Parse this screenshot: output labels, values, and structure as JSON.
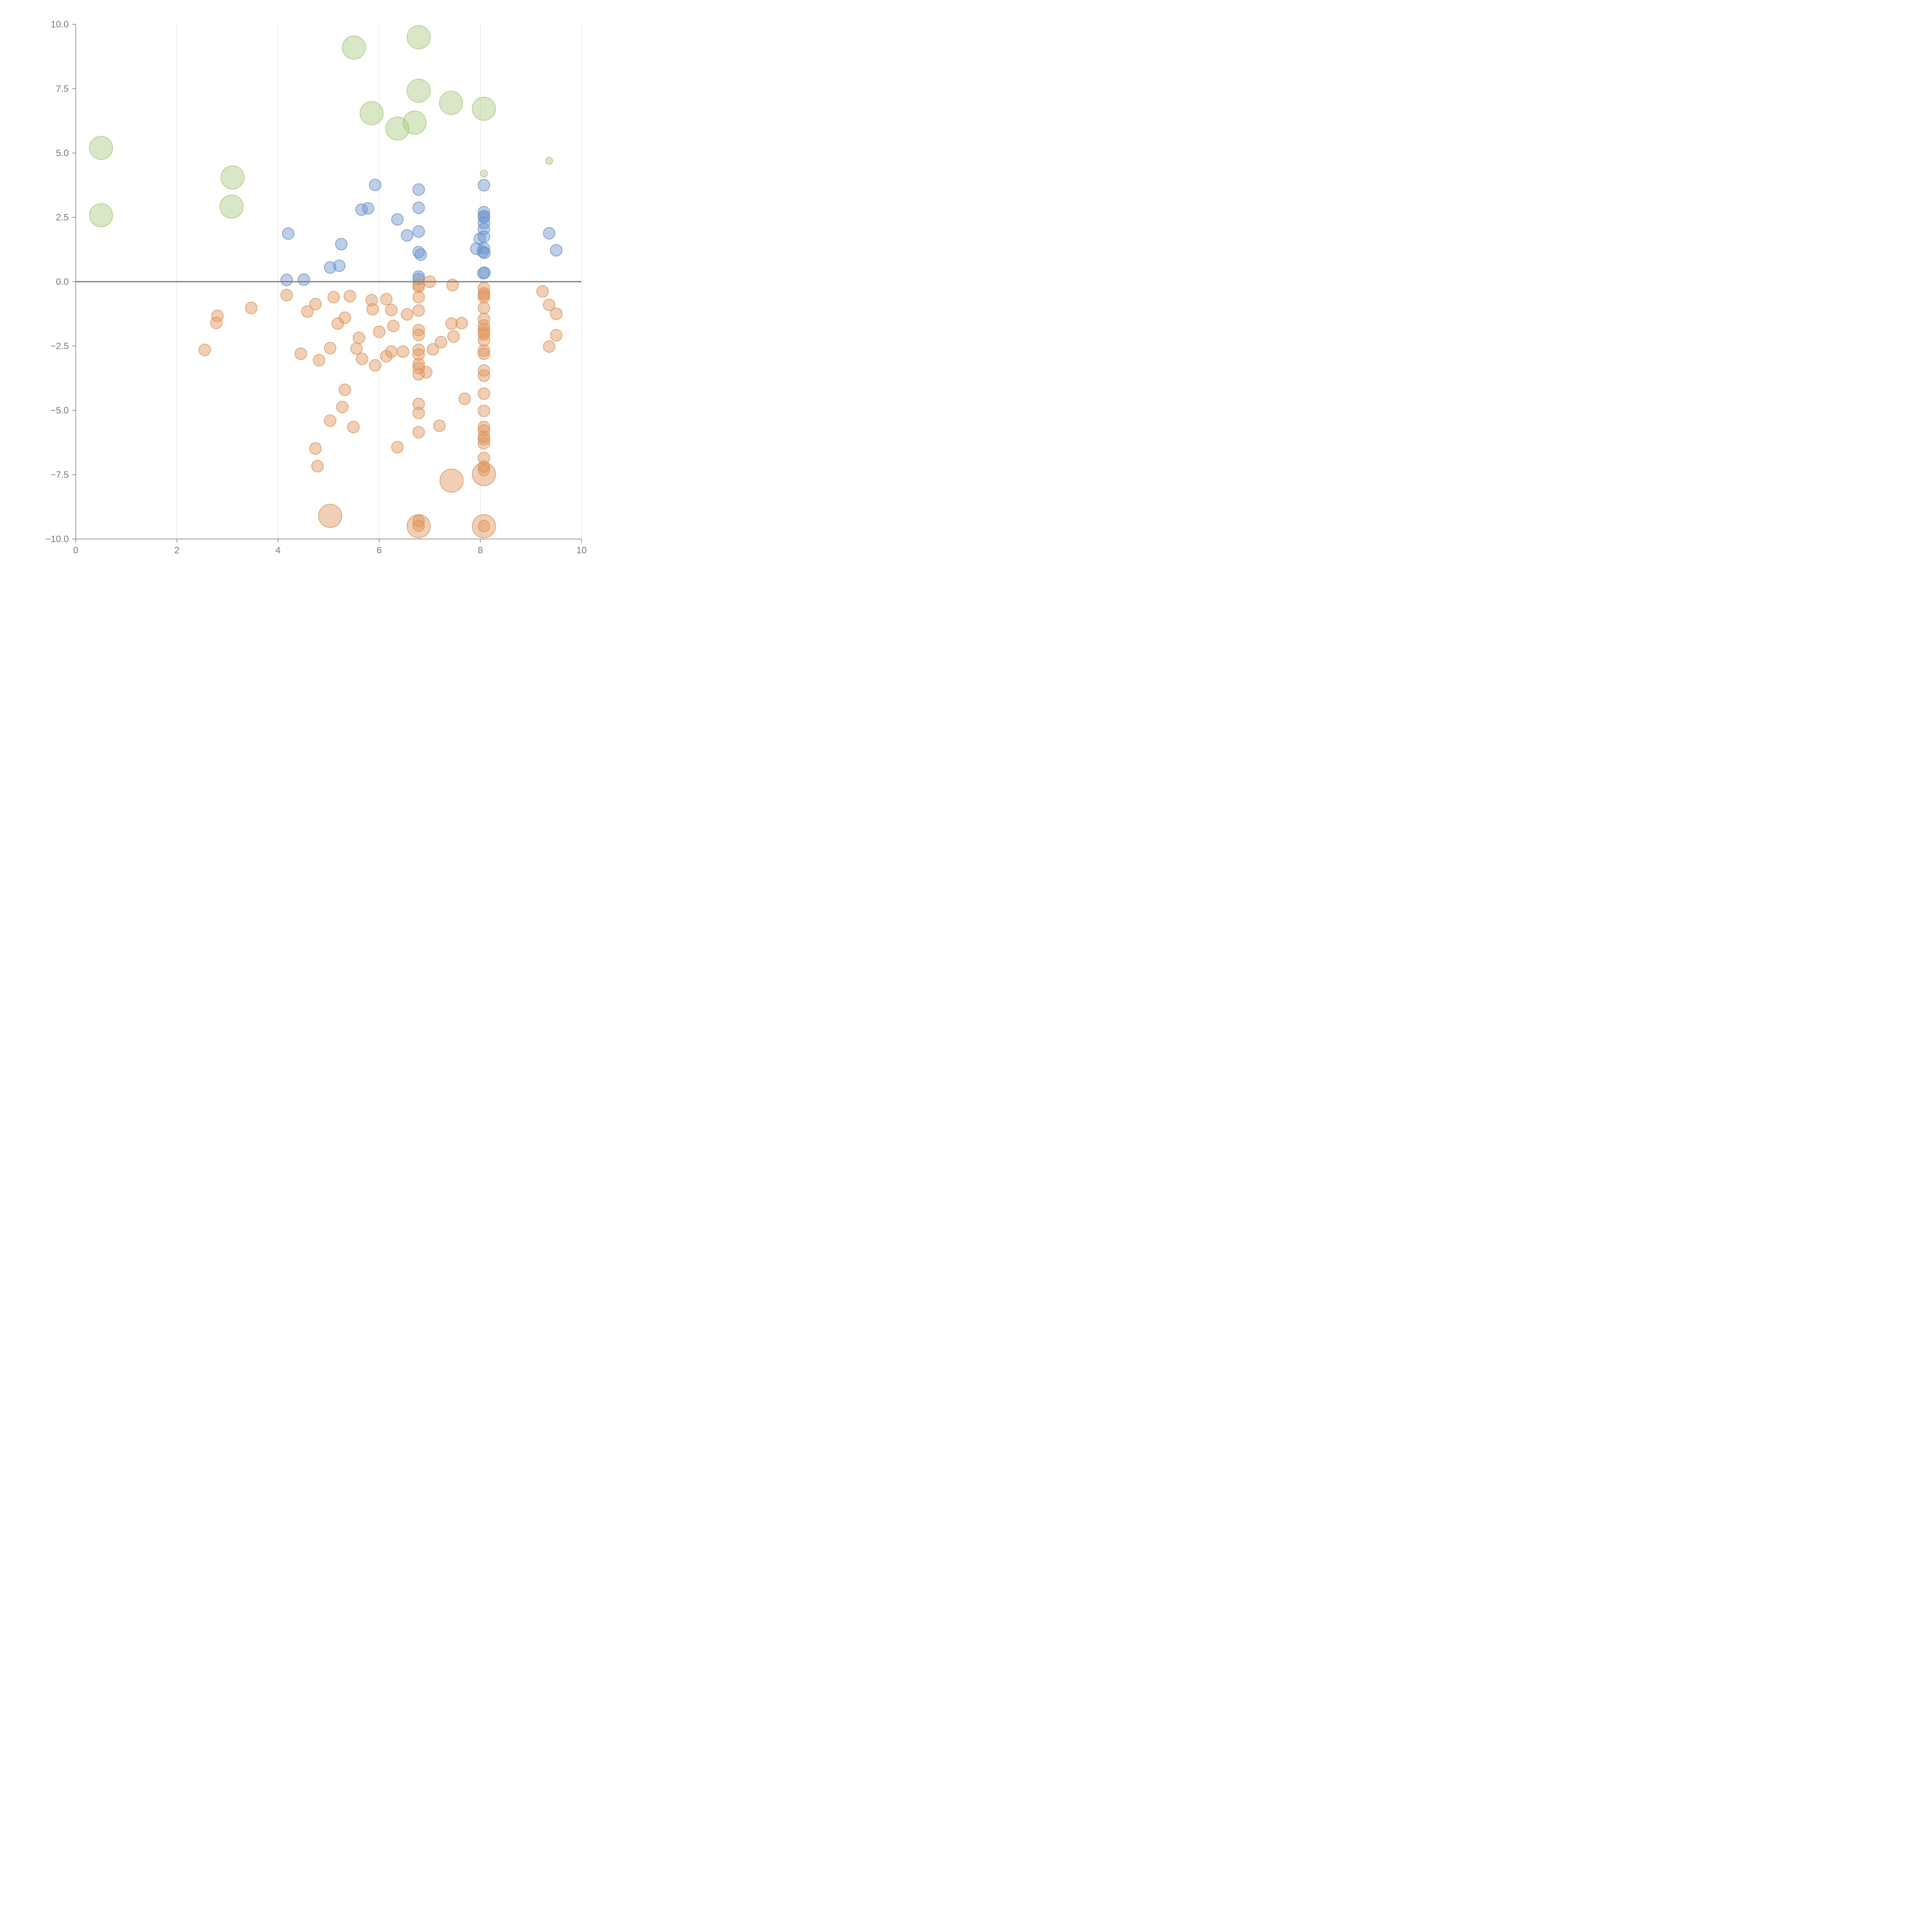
{
  "chart_data": {
    "type": "scatter",
    "title": "",
    "xlabel": "",
    "ylabel": "",
    "xlim": [
      0,
      10
    ],
    "ylim": [
      -10,
      10
    ],
    "x_ticks": [
      0,
      2,
      4,
      6,
      8,
      10
    ],
    "x_tick_labels": [
      "0",
      "2",
      "4",
      "6",
      "8",
      "10"
    ],
    "y_ticks": [
      10,
      7.5,
      5,
      2.5,
      0,
      -2.5,
      -5,
      -7.5,
      -10
    ],
    "y_tick_labels": [
      "10.0",
      "7.5",
      "5.0",
      "2.5",
      "0.0",
      "−2.5",
      "−5.0",
      "−7.5",
      "−10.0"
    ],
    "grid": "vertical",
    "reference_line_y": 0,
    "series": [
      {
        "name": "positive-large",
        "color": "#a8c97f",
        "fill_opacity": 0.45,
        "points": [
          [
            5.5,
            9.1,
            2
          ],
          [
            6.78,
            9.5,
            2
          ],
          [
            6.78,
            7.42,
            2
          ],
          [
            7.42,
            6.95,
            2
          ],
          [
            5.85,
            6.55,
            2
          ],
          [
            8.07,
            6.72,
            2
          ],
          [
            6.7,
            6.18,
            2
          ],
          [
            6.36,
            5.95,
            2
          ],
          [
            0.5,
            5.2,
            2
          ],
          [
            3.1,
            4.05,
            2
          ],
          [
            3.08,
            2.92,
            2
          ],
          [
            0.5,
            2.58,
            2
          ],
          [
            9.36,
            4.7,
            0.6
          ],
          [
            8.07,
            4.2,
            0.6
          ]
        ]
      },
      {
        "name": "positive-small",
        "color": "#6b93cc",
        "fill_opacity": 0.45,
        "points": [
          [
            5.92,
            3.76,
            1
          ],
          [
            6.78,
            3.58,
            1
          ],
          [
            8.07,
            3.75,
            1
          ],
          [
            5.65,
            2.8,
            1
          ],
          [
            5.78,
            2.85,
            1
          ],
          [
            6.78,
            2.87,
            1
          ],
          [
            6.36,
            2.42,
            1
          ],
          [
            8.07,
            2.7,
            1
          ],
          [
            8.07,
            2.55,
            1
          ],
          [
            8.07,
            2.5,
            1
          ],
          [
            8.07,
            2.28,
            1
          ],
          [
            8.07,
            2.05,
            1
          ],
          [
            4.2,
            1.87,
            1
          ],
          [
            6.55,
            1.8,
            1
          ],
          [
            6.78,
            1.95,
            1
          ],
          [
            8.07,
            1.75,
            1
          ],
          [
            7.99,
            1.67,
            1
          ],
          [
            9.36,
            1.88,
            1
          ],
          [
            5.25,
            1.46,
            1
          ],
          [
            7.92,
            1.28,
            1
          ],
          [
            8.07,
            1.3,
            1
          ],
          [
            8.05,
            1.17,
            1
          ],
          [
            8.08,
            1.12,
            1
          ],
          [
            6.78,
            1.15,
            1
          ],
          [
            6.82,
            1.05,
            1
          ],
          [
            9.5,
            1.22,
            1
          ],
          [
            5.03,
            0.55,
            1
          ],
          [
            5.21,
            0.62,
            1
          ],
          [
            8.06,
            0.33,
            1
          ],
          [
            8.08,
            0.35,
            1
          ],
          [
            6.78,
            0.2,
            1
          ],
          [
            6.78,
            0.1,
            1
          ],
          [
            4.17,
            0.07,
            1
          ],
          [
            4.51,
            0.08,
            1
          ]
        ]
      },
      {
        "name": "negative",
        "color": "#e0955a",
        "fill_opacity": 0.45,
        "points": [
          [
            7.0,
            0.0,
            1
          ],
          [
            7.45,
            -0.13,
            1
          ],
          [
            6.78,
            -0.12,
            1
          ],
          [
            6.78,
            -0.2,
            1
          ],
          [
            8.07,
            -0.25,
            1
          ],
          [
            8.07,
            -0.45,
            1
          ],
          [
            8.07,
            -0.52,
            1
          ],
          [
            8.07,
            -0.6,
            1
          ],
          [
            9.23,
            -0.38,
            1
          ],
          [
            4.17,
            -0.52,
            1
          ],
          [
            5.1,
            -0.6,
            1
          ],
          [
            5.42,
            -0.56,
            1
          ],
          [
            6.78,
            -0.6,
            1
          ],
          [
            5.85,
            -0.72,
            1
          ],
          [
            6.14,
            -0.68,
            1
          ],
          [
            4.74,
            -0.87,
            1
          ],
          [
            9.36,
            -0.9,
            1
          ],
          [
            3.47,
            -1.02,
            1
          ],
          [
            8.07,
            -1.02,
            1
          ],
          [
            4.58,
            -1.16,
            1
          ],
          [
            5.87,
            -1.07,
            1
          ],
          [
            6.24,
            -1.1,
            1
          ],
          [
            6.78,
            -1.12,
            1
          ],
          [
            6.55,
            -1.27,
            1
          ],
          [
            9.5,
            -1.25,
            1
          ],
          [
            2.8,
            -1.33,
            1
          ],
          [
            5.32,
            -1.4,
            1
          ],
          [
            8.07,
            -1.45,
            1
          ],
          [
            2.78,
            -1.6,
            1
          ],
          [
            5.18,
            -1.63,
            1
          ],
          [
            6.28,
            -1.72,
            1
          ],
          [
            7.43,
            -1.63,
            1
          ],
          [
            7.63,
            -1.61,
            1
          ],
          [
            8.07,
            -1.7,
            1
          ],
          [
            8.07,
            -1.85,
            1
          ],
          [
            6.78,
            -1.88,
            1
          ],
          [
            6.0,
            -1.95,
            1
          ],
          [
            8.07,
            -1.97,
            1
          ],
          [
            8.07,
            -2.05,
            1
          ],
          [
            6.78,
            -2.07,
            1
          ],
          [
            9.5,
            -2.08,
            1
          ],
          [
            7.47,
            -2.13,
            1
          ],
          [
            5.6,
            -2.18,
            1
          ],
          [
            8.07,
            -2.28,
            1
          ],
          [
            7.22,
            -2.35,
            1
          ],
          [
            2.55,
            -2.65,
            1
          ],
          [
            5.03,
            -2.58,
            1
          ],
          [
            5.55,
            -2.6,
            1
          ],
          [
            7.06,
            -2.63,
            1
          ],
          [
            6.78,
            -2.65,
            1
          ],
          [
            8.07,
            -2.68,
            1
          ],
          [
            6.24,
            -2.72,
            1
          ],
          [
            6.47,
            -2.72,
            1
          ],
          [
            9.36,
            -2.52,
            1
          ],
          [
            4.45,
            -2.8,
            1
          ],
          [
            6.78,
            -2.83,
            1
          ],
          [
            8.07,
            -2.8,
            1
          ],
          [
            6.14,
            -2.9,
            1
          ],
          [
            5.66,
            -3.0,
            1
          ],
          [
            4.81,
            -3.05,
            1
          ],
          [
            5.92,
            -3.25,
            1
          ],
          [
            6.78,
            -3.2,
            1
          ],
          [
            6.78,
            -3.35,
            1
          ],
          [
            8.07,
            -3.45,
            1
          ],
          [
            6.93,
            -3.52,
            1
          ],
          [
            6.78,
            -3.6,
            1
          ],
          [
            8.07,
            -3.65,
            1
          ],
          [
            5.32,
            -4.2,
            1
          ],
          [
            8.07,
            -4.35,
            1
          ],
          [
            7.69,
            -4.55,
            1
          ],
          [
            6.78,
            -4.75,
            1
          ],
          [
            5.27,
            -4.87,
            1
          ],
          [
            8.07,
            -5.02,
            1
          ],
          [
            6.78,
            -5.1,
            1
          ],
          [
            5.03,
            -5.4,
            1
          ],
          [
            7.19,
            -5.6,
            1
          ],
          [
            5.49,
            -5.65,
            1
          ],
          [
            8.07,
            -5.65,
            1
          ],
          [
            8.07,
            -5.78,
            1
          ],
          [
            6.78,
            -5.85,
            1
          ],
          [
            8.07,
            -6.02,
            1
          ],
          [
            8.07,
            -6.12,
            1
          ],
          [
            8.07,
            -6.28,
            1
          ],
          [
            6.36,
            -6.43,
            1
          ],
          [
            4.74,
            -6.48,
            1
          ],
          [
            8.07,
            -6.85,
            1
          ],
          [
            4.78,
            -7.17,
            1
          ],
          [
            8.07,
            -7.18,
            1
          ],
          [
            8.07,
            -7.32,
            1
          ],
          [
            8.07,
            -7.48,
            2
          ],
          [
            7.43,
            -7.73,
            2
          ],
          [
            5.03,
            -9.1,
            2
          ],
          [
            6.78,
            -9.3,
            1
          ],
          [
            6.78,
            -9.48,
            1
          ],
          [
            6.78,
            -9.5,
            2
          ],
          [
            8.07,
            -9.5,
            2
          ],
          [
            8.07,
            -9.5,
            1
          ]
        ]
      }
    ]
  }
}
